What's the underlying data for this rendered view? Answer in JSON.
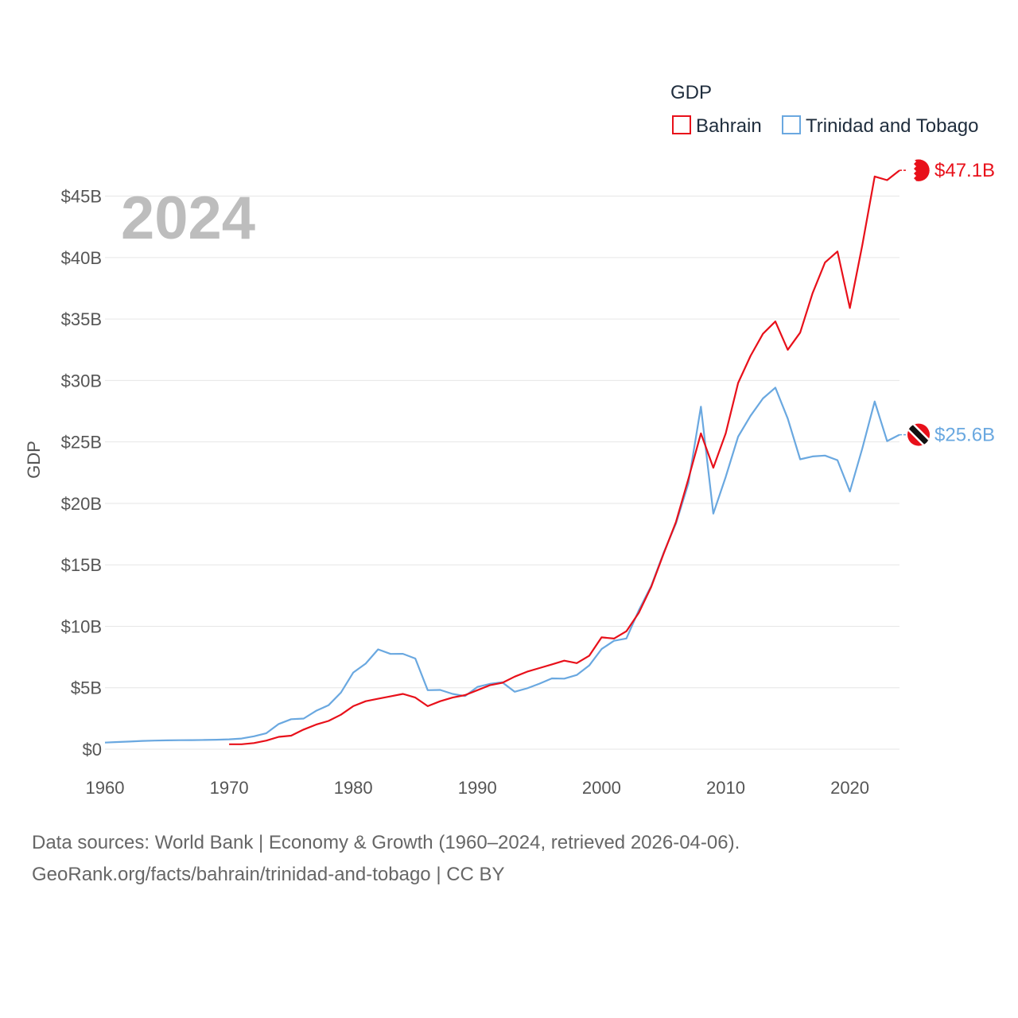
{
  "legend": {
    "title": "GDP"
  },
  "year_label": "2024",
  "footer": {
    "line1": "Data sources: World Bank | Economy & Growth (1960–2024, retrieved 2026-04-06).",
    "line2": "GeoRank.org/facts/bahrain/trinidad-and-tobago | CC BY"
  },
  "colors": {
    "bahrain": "#e8101a",
    "trinidad": "#6aa8e0"
  },
  "chart_data": {
    "type": "line",
    "title": "",
    "xlabel": "",
    "ylabel": "GDP",
    "xlim": [
      1960,
      2024
    ],
    "ylim": [
      0,
      47.5
    ],
    "x_ticks": [
      1960,
      1970,
      1980,
      1990,
      2000,
      2010,
      2020
    ],
    "y_ticks": [
      0,
      5,
      10,
      15,
      20,
      25,
      30,
      35,
      40,
      45
    ],
    "y_tick_labels": [
      "$0",
      "$5B",
      "$10B",
      "$15B",
      "$20B",
      "$25B",
      "$30B",
      "$35B",
      "$40B",
      "$45B"
    ],
    "series": [
      {
        "name": "Bahrain",
        "key": "bahrain",
        "end_label": "$47.1B",
        "x": [
          1970,
          1971,
          1972,
          1973,
          1974,
          1975,
          1976,
          1977,
          1978,
          1979,
          1980,
          1981,
          1982,
          1983,
          1984,
          1985,
          1986,
          1987,
          1988,
          1989,
          1990,
          1991,
          1992,
          1993,
          1994,
          1995,
          1996,
          1997,
          1998,
          1999,
          2000,
          2001,
          2002,
          2003,
          2004,
          2005,
          2006,
          2007,
          2008,
          2009,
          2010,
          2011,
          2012,
          2013,
          2014,
          2015,
          2016,
          2017,
          2018,
          2019,
          2020,
          2021,
          2022,
          2023,
          2024
        ],
        "values": [
          0.4,
          0.4,
          0.5,
          0.7,
          1.0,
          1.1,
          1.6,
          2.0,
          2.3,
          2.8,
          3.5,
          3.9,
          4.1,
          4.3,
          4.5,
          4.2,
          3.5,
          3.9,
          4.2,
          4.4,
          4.8,
          5.2,
          5.4,
          5.9,
          6.3,
          6.6,
          6.9,
          7.2,
          7.0,
          7.6,
          9.1,
          9.0,
          9.6,
          11.1,
          13.2,
          15.9,
          18.5,
          22.0,
          25.7,
          22.9,
          25.7,
          29.8,
          32.0,
          33.8,
          34.8,
          32.5,
          33.9,
          37.1,
          39.6,
          40.5,
          35.9,
          41.0,
          46.6,
          46.3,
          47.1
        ]
      },
      {
        "name": "Trinidad and Tobago",
        "key": "trinidad",
        "end_label": "$25.6B",
        "x": [
          1960,
          1961,
          1962,
          1963,
          1964,
          1965,
          1966,
          1967,
          1968,
          1969,
          1970,
          1971,
          1972,
          1973,
          1974,
          1975,
          1976,
          1977,
          1978,
          1979,
          1980,
          1981,
          1982,
          1983,
          1984,
          1985,
          1986,
          1987,
          1988,
          1989,
          1990,
          1991,
          1992,
          1993,
          1994,
          1995,
          1996,
          1997,
          1998,
          1999,
          2000,
          2001,
          2002,
          2003,
          2004,
          2005,
          2006,
          2007,
          2008,
          2009,
          2010,
          2011,
          2012,
          2013,
          2014,
          2015,
          2016,
          2017,
          2018,
          2019,
          2020,
          2021,
          2022,
          2023,
          2024
        ],
        "values": [
          0.54,
          0.58,
          0.62,
          0.67,
          0.7,
          0.72,
          0.73,
          0.74,
          0.75,
          0.77,
          0.8,
          0.87,
          1.05,
          1.3,
          2.05,
          2.44,
          2.49,
          3.12,
          3.57,
          4.6,
          6.24,
          6.96,
          8.12,
          7.75,
          7.76,
          7.38,
          4.8,
          4.82,
          4.5,
          4.32,
          5.07,
          5.31,
          5.44,
          4.67,
          4.95,
          5.33,
          5.76,
          5.74,
          6.04,
          6.81,
          8.15,
          8.82,
          9.01,
          11.3,
          13.28,
          15.98,
          18.37,
          21.64,
          27.87,
          19.17,
          22.16,
          25.43,
          27.13,
          28.54,
          29.42,
          26.9,
          23.59,
          23.82,
          23.89,
          23.52,
          20.97,
          24.46,
          28.29,
          25.07,
          25.59
        ]
      }
    ]
  }
}
